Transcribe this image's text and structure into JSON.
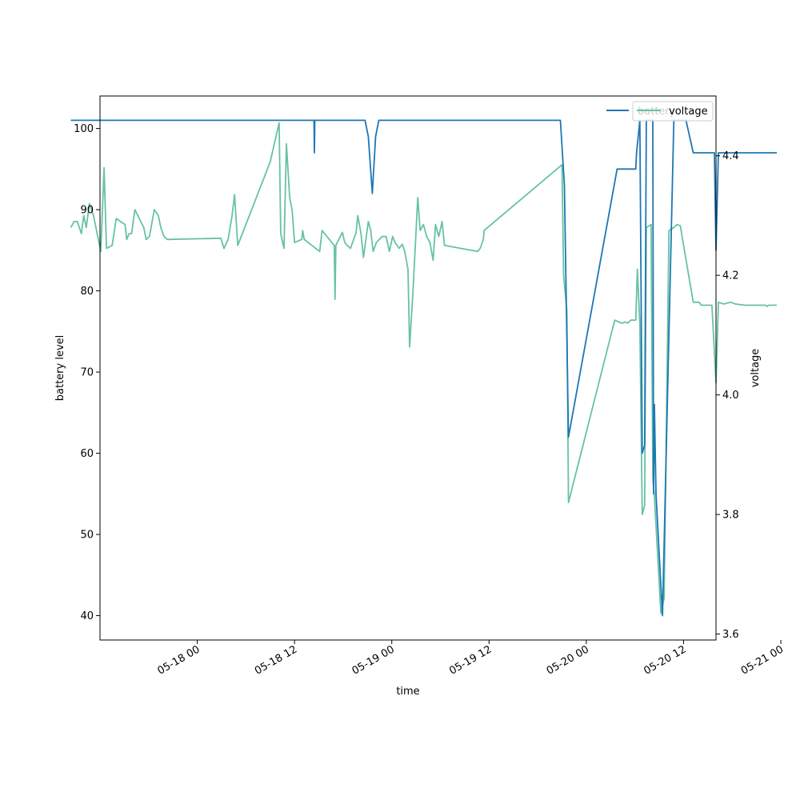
{
  "chart_data": {
    "type": "line",
    "xlabel": "time",
    "ylabel_left": "battery level",
    "ylabel_right": "voltage",
    "x_ticks": [
      "05-18 00",
      "05-18 12",
      "05-19 00",
      "05-19 12",
      "05-20 00",
      "05-20 12",
      "05-21 00"
    ],
    "xlim_hours": [
      -12.0,
      64.0
    ],
    "left_axis": {
      "ylim": [
        37,
        104
      ],
      "ticks": [
        40,
        50,
        60,
        70,
        80,
        90,
        100
      ]
    },
    "right_axis": {
      "ylim": [
        3.59,
        4.5
      ],
      "ticks": [
        "3.6",
        "3.8",
        "4.0",
        "4.2",
        "4.4"
      ]
    },
    "legend": {
      "position": "top-right",
      "entries": [
        "battery",
        "voltage"
      ]
    },
    "series": [
      {
        "name": "battery",
        "axis": "left",
        "color": "#1f77b4",
        "points": [
          [
            "05-17 08:24",
            101
          ],
          [
            "05-18 14:24",
            101
          ],
          [
            "05-18 14:27",
            97
          ],
          [
            "05-18 14:30",
            101
          ],
          [
            "05-18 20:42",
            101
          ],
          [
            "05-18 21:06",
            99
          ],
          [
            "05-18 21:36",
            92
          ],
          [
            "05-18 22:00",
            99
          ],
          [
            "05-18 22:24",
            101
          ],
          [
            "05-19 20:48",
            101
          ],
          [
            "05-19 21:18",
            93
          ],
          [
            "05-19 21:48",
            62
          ],
          [
            "05-20 03:48",
            95
          ],
          [
            "05-20 06:06",
            95
          ],
          [
            "05-20 06:12",
            97
          ],
          [
            "05-20 06:36",
            101
          ],
          [
            "05-20 06:54",
            60
          ],
          [
            "05-20 07:12",
            61
          ],
          [
            "05-20 07:24",
            101
          ],
          [
            "05-20 08:12",
            101
          ],
          [
            "05-20 08:18",
            55
          ],
          [
            "05-20 08:24",
            66
          ],
          [
            "05-20 08:36",
            55
          ],
          [
            "05-20 09:24",
            40
          ],
          [
            "05-20 10:48",
            101
          ],
          [
            "05-20 12:18",
            101
          ],
          [
            "05-20 13:12",
            97
          ],
          [
            "05-20 15:36",
            97
          ],
          [
            "05-20 15:48",
            97
          ],
          [
            "05-20 16:00",
            85
          ],
          [
            "05-20 16:18",
            97
          ],
          [
            "05-20 23:30",
            97
          ]
        ]
      },
      {
        "name": "voltage",
        "axis": "right",
        "color": "#66c2a5",
        "points": [
          [
            "05-17 08:24",
            4.28
          ],
          [
            "05-17 08:48",
            4.29
          ],
          [
            "05-17 09:12",
            4.29
          ],
          [
            "05-17 09:42",
            4.27
          ],
          [
            "05-17 10:00",
            4.3
          ],
          [
            "05-17 10:18",
            4.28
          ],
          [
            "05-17 10:42",
            4.32
          ],
          [
            "05-17 11:12",
            4.3
          ],
          [
            "05-17 12:06",
            4.24
          ],
          [
            "05-17 12:30",
            4.38
          ],
          [
            "05-17 12:48",
            4.245
          ],
          [
            "05-17 13:30",
            4.25
          ],
          [
            "05-17 14:00",
            4.295
          ],
          [
            "05-17 15:06",
            4.285
          ],
          [
            "05-17 15:18",
            4.26
          ],
          [
            "05-17 15:36",
            4.27
          ],
          [
            "05-17 15:54",
            4.27
          ],
          [
            "05-17 16:18",
            4.31
          ],
          [
            "05-17 17:24",
            4.28
          ],
          [
            "05-17 17:42",
            4.26
          ],
          [
            "05-17 18:06",
            4.265
          ],
          [
            "05-17 18:42",
            4.31
          ],
          [
            "05-17 19:12",
            4.3
          ],
          [
            "05-17 19:30",
            4.28
          ],
          [
            "05-17 19:54",
            4.265
          ],
          [
            "05-17 20:18",
            4.26
          ],
          [
            "05-18 02:54",
            4.262
          ],
          [
            "05-18 03:18",
            4.245
          ],
          [
            "05-18 03:48",
            4.26
          ],
          [
            "05-18 04:18",
            4.3
          ],
          [
            "05-18 04:36",
            4.335
          ],
          [
            "05-18 05:00",
            4.25
          ],
          [
            "05-18 09:00",
            4.39
          ],
          [
            "05-18 10:06",
            4.455
          ],
          [
            "05-18 10:18",
            4.27
          ],
          [
            "05-18 10:42",
            4.245
          ],
          [
            "05-18 11:00",
            4.42
          ],
          [
            "05-18 11:24",
            4.33
          ],
          [
            "05-18 11:42",
            4.31
          ],
          [
            "05-18 12:00",
            4.255
          ],
          [
            "05-18 12:54",
            4.26
          ],
          [
            "05-18 13:00",
            4.275
          ],
          [
            "05-18 13:12",
            4.26
          ],
          [
            "05-18 15:06",
            4.24
          ],
          [
            "05-18 15:24",
            4.275
          ],
          [
            "05-18 16:54",
            4.25
          ],
          [
            "05-18 17:00",
            4.16
          ],
          [
            "05-18 17:06",
            4.25
          ],
          [
            "05-18 17:54",
            4.272
          ],
          [
            "05-18 18:12",
            4.255
          ],
          [
            "05-18 18:30",
            4.25
          ],
          [
            "05-18 18:54",
            4.245
          ],
          [
            "05-18 19:36",
            4.272
          ],
          [
            "05-18 19:48",
            4.3
          ],
          [
            "05-18 20:12",
            4.27
          ],
          [
            "05-18 20:30",
            4.23
          ],
          [
            "05-18 21:06",
            4.29
          ],
          [
            "05-18 21:24",
            4.275
          ],
          [
            "05-18 21:42",
            4.24
          ],
          [
            "05-18 22:06",
            4.255
          ],
          [
            "05-18 22:48",
            4.265
          ],
          [
            "05-18 23:18",
            4.265
          ],
          [
            "05-18 23:42",
            4.24
          ],
          [
            "05-19 00:06",
            4.265
          ],
          [
            "05-19 00:24",
            4.255
          ],
          [
            "05-19 00:54",
            4.245
          ],
          [
            "05-19 01:18",
            4.252
          ],
          [
            "05-19 01:36",
            4.24
          ],
          [
            "05-19 02:00",
            4.21
          ],
          [
            "05-19 02:12",
            4.08
          ],
          [
            "05-19 02:36",
            4.17
          ],
          [
            "05-19 03:12",
            4.33
          ],
          [
            "05-19 03:30",
            4.275
          ],
          [
            "05-19 03:54",
            4.285
          ],
          [
            "05-19 04:18",
            4.265
          ],
          [
            "05-19 04:42",
            4.255
          ],
          [
            "05-19 05:06",
            4.225
          ],
          [
            "05-19 05:24",
            4.285
          ],
          [
            "05-19 05:48",
            4.265
          ],
          [
            "05-19 06:12",
            4.29
          ],
          [
            "05-19 06:30",
            4.25
          ],
          [
            "05-19 10:36",
            4.24
          ],
          [
            "05-19 10:54",
            4.245
          ],
          [
            "05-19 11:18",
            4.26
          ],
          [
            "05-19 11:24",
            4.275
          ],
          [
            "05-19 21:00",
            4.385
          ],
          [
            "05-19 21:12",
            4.2
          ],
          [
            "05-19 21:36",
            4.14
          ],
          [
            "05-19 21:48",
            3.82
          ],
          [
            "05-20 03:30",
            4.125
          ],
          [
            "05-20 04:00",
            4.122
          ],
          [
            "05-20 04:24",
            4.12
          ],
          [
            "05-20 04:48",
            4.122
          ],
          [
            "05-20 05:06",
            4.12
          ],
          [
            "05-20 05:30",
            4.125
          ],
          [
            "05-20 06:06",
            4.125
          ],
          [
            "05-20 06:18",
            4.21
          ],
          [
            "05-20 06:36",
            4.12
          ],
          [
            "05-20 06:54",
            3.8
          ],
          [
            "05-20 07:12",
            3.815
          ],
          [
            "05-20 07:24",
            4.28
          ],
          [
            "05-20 08:00",
            4.285
          ],
          [
            "05-20 08:12",
            3.86
          ],
          [
            "05-20 08:24",
            3.83
          ],
          [
            "05-20 09:12",
            3.635
          ],
          [
            "05-20 09:36",
            3.66
          ],
          [
            "05-20 10:12",
            4.275
          ],
          [
            "05-20 10:36",
            4.278
          ],
          [
            "05-20 11:12",
            4.285
          ],
          [
            "05-20 11:36",
            4.283
          ],
          [
            "05-20 12:00",
            4.25
          ],
          [
            "05-20 13:12",
            4.155
          ],
          [
            "05-20 13:54",
            4.155
          ],
          [
            "05-20 14:12",
            4.15
          ],
          [
            "05-20 15:30",
            4.15
          ],
          [
            "05-20 16:00",
            4.02
          ],
          [
            "05-20 16:18",
            4.155
          ],
          [
            "05-20 17:00",
            4.152
          ],
          [
            "05-20 17:48",
            4.155
          ],
          [
            "05-20 18:24",
            4.152
          ],
          [
            "05-20 19:36",
            4.15
          ],
          [
            "05-20 22:06",
            4.15
          ],
          [
            "05-20 22:18",
            4.148
          ],
          [
            "05-20 22:30",
            4.15
          ],
          [
            "05-20 23:30",
            4.15
          ]
        ]
      }
    ]
  }
}
